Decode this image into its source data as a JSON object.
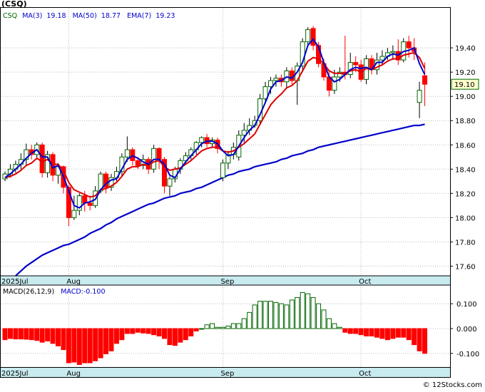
{
  "chart_data": [
    {
      "type": "candlestick",
      "title": "(CSQ)",
      "legend": {
        "symbol": "CSQ",
        "ma3_label": "MA(3)",
        "ma3_value": "19.18",
        "ma50_label": "MA(50)",
        "ma50_value": "18.77",
        "ema7_label": "EMA(7)",
        "ema7_value": "19.23"
      },
      "last_price_label": "19.10",
      "last_price": 19.1,
      "ylim": [
        17.52,
        19.73
      ],
      "yticks": [
        17.6,
        17.8,
        18.0,
        18.2,
        18.4,
        18.6,
        18.8,
        19.0,
        19.2,
        19.4
      ],
      "ytick_labels": [
        "17.60",
        "17.80",
        "18.00",
        "18.20",
        "18.40",
        "18.60",
        "18.80",
        "19.00",
        "19.20",
        "19.40"
      ],
      "x_month_labels": [
        {
          "label": "2025Jul",
          "index": 0
        },
        {
          "label": "Aug",
          "index": 12
        },
        {
          "label": "Sep",
          "index": 41
        },
        {
          "label": "Oct",
          "index": 67
        }
      ],
      "grid": true,
      "candles": [
        [
          18.32,
          18.36,
          18.3,
          18.38
        ],
        [
          18.36,
          18.4,
          18.33,
          18.44
        ],
        [
          18.4,
          18.44,
          18.37,
          18.47
        ],
        [
          18.44,
          18.48,
          18.4,
          18.53
        ],
        [
          18.48,
          18.56,
          18.43,
          18.61
        ],
        [
          18.56,
          18.52,
          18.48,
          18.6
        ],
        [
          18.52,
          18.6,
          18.48,
          18.62
        ],
        [
          18.6,
          18.37,
          18.33,
          18.62
        ],
        [
          18.37,
          18.52,
          18.33,
          18.55
        ],
        [
          18.52,
          18.35,
          18.3,
          18.54
        ],
        [
          18.35,
          18.42,
          18.28,
          18.45
        ],
        [
          18.42,
          18.25,
          18.2,
          18.43
        ],
        [
          18.25,
          18.0,
          17.93,
          18.27
        ],
        [
          18.0,
          18.06,
          17.98,
          18.18
        ],
        [
          18.06,
          18.18,
          18.02,
          18.2
        ],
        [
          18.18,
          18.12,
          18.05,
          18.22
        ],
        [
          18.12,
          18.1,
          18.06,
          18.18
        ],
        [
          18.1,
          18.22,
          18.08,
          18.26
        ],
        [
          18.22,
          18.36,
          18.2,
          18.38
        ],
        [
          18.36,
          18.25,
          18.2,
          18.38
        ],
        [
          18.25,
          18.33,
          18.22,
          18.36
        ],
        [
          18.33,
          18.38,
          18.3,
          18.42
        ],
        [
          18.38,
          18.5,
          18.34,
          18.53
        ],
        [
          18.5,
          18.56,
          18.46,
          18.67
        ],
        [
          18.56,
          18.47,
          18.43,
          18.58
        ],
        [
          18.47,
          18.43,
          18.4,
          18.5
        ],
        [
          18.43,
          18.48,
          18.4,
          18.52
        ],
        [
          18.48,
          18.4,
          18.36,
          18.5
        ],
        [
          18.4,
          18.57,
          18.37,
          18.6
        ],
        [
          18.57,
          18.48,
          18.4,
          18.58
        ],
        [
          18.48,
          18.26,
          18.2,
          18.5
        ],
        [
          18.26,
          18.32,
          18.18,
          18.34
        ],
        [
          18.32,
          18.4,
          18.29,
          18.42
        ],
        [
          18.4,
          18.47,
          18.36,
          18.49
        ],
        [
          18.47,
          18.51,
          18.44,
          18.54
        ],
        [
          18.51,
          18.56,
          18.48,
          18.58
        ],
        [
          18.56,
          18.62,
          18.52,
          18.63
        ],
        [
          18.62,
          18.66,
          18.58,
          18.67
        ],
        [
          18.66,
          18.61,
          18.58,
          18.69
        ],
        [
          18.61,
          18.64,
          18.58,
          18.66
        ],
        [
          18.64,
          18.57,
          18.53,
          18.66
        ],
        [
          18.33,
          18.45,
          18.3,
          18.48
        ],
        [
          18.45,
          18.52,
          18.4,
          18.55
        ],
        [
          18.52,
          18.58,
          18.48,
          18.62
        ],
        [
          18.5,
          18.68,
          18.47,
          18.72
        ],
        [
          18.68,
          18.72,
          18.62,
          18.78
        ],
        [
          18.72,
          18.76,
          18.68,
          18.82
        ],
        [
          18.76,
          18.8,
          18.74,
          18.84
        ],
        [
          18.8,
          18.98,
          18.76,
          19.02
        ],
        [
          18.98,
          19.08,
          18.95,
          19.12
        ],
        [
          19.08,
          19.13,
          19.02,
          19.16
        ],
        [
          19.13,
          19.15,
          19.08,
          19.18
        ],
        [
          19.15,
          19.12,
          19.08,
          19.18
        ],
        [
          19.12,
          19.21,
          19.07,
          19.24
        ],
        [
          19.21,
          19.13,
          19.1,
          19.24
        ],
        [
          19.13,
          19.25,
          18.93,
          19.28
        ],
        [
          19.25,
          19.45,
          19.2,
          19.48
        ],
        [
          19.45,
          19.55,
          19.42,
          19.57
        ],
        [
          19.56,
          19.42,
          19.38,
          19.58
        ],
        [
          19.42,
          19.27,
          19.24,
          19.45
        ],
        [
          19.27,
          19.16,
          19.13,
          19.31
        ],
        [
          19.16,
          19.05,
          19.0,
          19.2
        ],
        [
          19.05,
          19.16,
          19.02,
          19.22
        ],
        [
          19.16,
          19.2,
          19.12,
          19.24
        ],
        [
          19.2,
          19.18,
          19.14,
          19.5
        ],
        [
          19.18,
          19.28,
          19.15,
          19.36
        ],
        [
          19.28,
          19.26,
          19.2,
          19.33
        ],
        [
          19.26,
          19.14,
          19.12,
          19.3
        ],
        [
          19.14,
          19.31,
          19.1,
          19.34
        ],
        [
          19.31,
          19.22,
          19.18,
          19.34
        ],
        [
          19.22,
          19.3,
          19.18,
          19.36
        ],
        [
          19.3,
          19.33,
          19.26,
          19.38
        ],
        [
          19.33,
          19.36,
          19.3,
          19.4
        ],
        [
          19.36,
          19.37,
          19.3,
          19.42
        ],
        [
          19.37,
          19.3,
          19.26,
          19.47
        ],
        [
          19.3,
          19.45,
          19.28,
          19.48
        ],
        [
          19.45,
          19.4,
          19.32,
          19.5
        ],
        [
          19.4,
          19.37,
          19.3,
          19.48
        ],
        [
          18.95,
          19.05,
          18.82,
          19.12
        ],
        [
          19.17,
          19.1,
          18.92,
          19.28
        ]
      ],
      "ma3": [
        18.33,
        18.36,
        18.4,
        18.44,
        18.49,
        18.53,
        18.56,
        18.5,
        18.5,
        18.41,
        18.43,
        18.34,
        18.22,
        18.1,
        18.08,
        18.12,
        18.13,
        18.15,
        18.23,
        18.28,
        18.31,
        18.32,
        18.4,
        18.48,
        18.51,
        18.49,
        18.46,
        18.44,
        18.48,
        18.48,
        18.44,
        18.35,
        18.33,
        18.4,
        18.46,
        18.51,
        18.56,
        18.61,
        18.63,
        18.63,
        18.61,
        18.55,
        18.51,
        18.52,
        18.59,
        18.66,
        18.72,
        18.76,
        18.85,
        18.95,
        19.06,
        19.12,
        19.13,
        19.16,
        19.15,
        19.2,
        19.28,
        19.42,
        19.47,
        19.41,
        19.28,
        19.16,
        19.12,
        19.14,
        19.18,
        19.22,
        19.24,
        19.23,
        19.24,
        19.22,
        19.28,
        19.28,
        19.33,
        19.35,
        19.34,
        19.37,
        19.38,
        19.4,
        19.27,
        19.18
      ],
      "ema7": [
        18.33,
        18.34,
        18.36,
        18.39,
        18.43,
        18.45,
        18.49,
        18.46,
        18.48,
        18.44,
        18.44,
        18.39,
        18.29,
        18.23,
        18.21,
        18.19,
        18.17,
        18.18,
        18.23,
        18.24,
        18.26,
        18.29,
        18.34,
        18.4,
        18.42,
        18.42,
        18.44,
        18.43,
        18.46,
        18.47,
        18.42,
        18.39,
        18.4,
        18.41,
        18.44,
        18.47,
        18.51,
        18.55,
        18.57,
        18.58,
        18.58,
        18.55,
        18.54,
        18.55,
        18.58,
        18.61,
        18.65,
        18.69,
        18.77,
        18.85,
        18.93,
        18.98,
        19.02,
        19.07,
        19.09,
        19.13,
        19.21,
        19.29,
        19.32,
        19.31,
        19.27,
        19.21,
        19.19,
        19.19,
        19.19,
        19.21,
        19.22,
        19.2,
        19.23,
        19.22,
        19.24,
        19.26,
        19.29,
        19.31,
        19.31,
        19.34,
        19.35,
        19.36,
        19.32,
        19.23
      ],
      "ma50": [
        17.52,
        17.56,
        17.6,
        17.63,
        17.66,
        17.69,
        17.71,
        17.73,
        17.75,
        17.77,
        17.78,
        17.8,
        17.82,
        17.84,
        17.87,
        17.89,
        17.91,
        17.94,
        17.96,
        17.99,
        18.01,
        18.03,
        18.05,
        18.07,
        18.09,
        18.11,
        18.12,
        18.14,
        18.16,
        18.17,
        18.18,
        18.2,
        18.21,
        18.22,
        18.24,
        18.25,
        18.27,
        18.29,
        18.31,
        18.33,
        18.35,
        18.36,
        18.38,
        18.39,
        18.4,
        18.42,
        18.43,
        18.44,
        18.45,
        18.46,
        18.48,
        18.49,
        18.51,
        18.52,
        18.53,
        18.55,
        18.56,
        18.58,
        18.59,
        18.6,
        18.61,
        18.62,
        18.63,
        18.64,
        18.65,
        18.66,
        18.67,
        18.68,
        18.69,
        18.7,
        18.71,
        18.72,
        18.73,
        18.74,
        18.75,
        18.76,
        18.76,
        18.77
      ],
      "ma50_start_index": 2
    },
    {
      "type": "bar",
      "legend": {
        "label": "MACD(26,12,9)",
        "value_label": "MACD:-0.100"
      },
      "ylim": [
        -0.155,
        0.175
      ],
      "yticks": [
        0.1,
        0.0,
        -0.1
      ],
      "ytick_labels": [
        "0.100",
        "0.000",
        "-0.100"
      ],
      "x_month_labels": [
        {
          "label": "2025Jul",
          "index": 0
        },
        {
          "label": "Aug",
          "index": 12
        },
        {
          "label": "Sep",
          "index": 41
        },
        {
          "label": "Oct",
          "index": 67
        }
      ],
      "values": [
        -0.045,
        -0.04,
        -0.042,
        -0.042,
        -0.043,
        -0.045,
        -0.048,
        -0.055,
        -0.05,
        -0.06,
        -0.07,
        -0.085,
        -0.138,
        -0.135,
        -0.145,
        -0.138,
        -0.138,
        -0.13,
        -0.118,
        -0.102,
        -0.09,
        -0.06,
        -0.045,
        -0.02,
        -0.02,
        -0.015,
        -0.018,
        -0.02,
        -0.025,
        -0.03,
        -0.04,
        -0.065,
        -0.068,
        -0.055,
        -0.045,
        -0.03,
        -0.01,
        0.0,
        0.015,
        0.02,
        0.005,
        0.005,
        0.01,
        0.02,
        0.02,
        0.04,
        0.065,
        0.095,
        0.11,
        0.11,
        0.11,
        0.105,
        0.1,
        0.095,
        0.115,
        0.125,
        0.145,
        0.14,
        0.125,
        0.1,
        0.075,
        0.04,
        0.02,
        0.005,
        -0.015,
        -0.02,
        -0.02,
        -0.025,
        -0.03,
        -0.03,
        -0.035,
        -0.04,
        -0.045,
        -0.04,
        -0.035,
        -0.035,
        -0.045,
        -0.065,
        -0.09,
        -0.1
      ]
    }
  ],
  "footer": {
    "copyright": "© 12Stocks.com"
  },
  "colors": {
    "up": "#006600",
    "down": "#ff0000",
    "ma_line": "#0000cc",
    "ema_line": "#dd0000",
    "axis_band": "#c8ebf0",
    "price_tag": "#ffffcc"
  }
}
